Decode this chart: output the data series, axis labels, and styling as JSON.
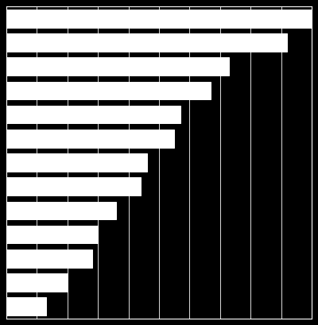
{
  "values": [
    100,
    92,
    73,
    67,
    57,
    55,
    46,
    44,
    36,
    30,
    28,
    20,
    13
  ],
  "bar_color": "#ffffff",
  "background_color": "#000000",
  "grid_color": "#ffffff",
  "bar_edge_color": "#ffffff",
  "xlim": [
    0,
    100
  ],
  "ylim": [
    -0.5,
    12.5
  ],
  "figsize": [
    4.0,
    4.09
  ],
  "dpi": 100,
  "n_xticks": 11,
  "bar_height": 0.75,
  "linewidth": 0.7
}
